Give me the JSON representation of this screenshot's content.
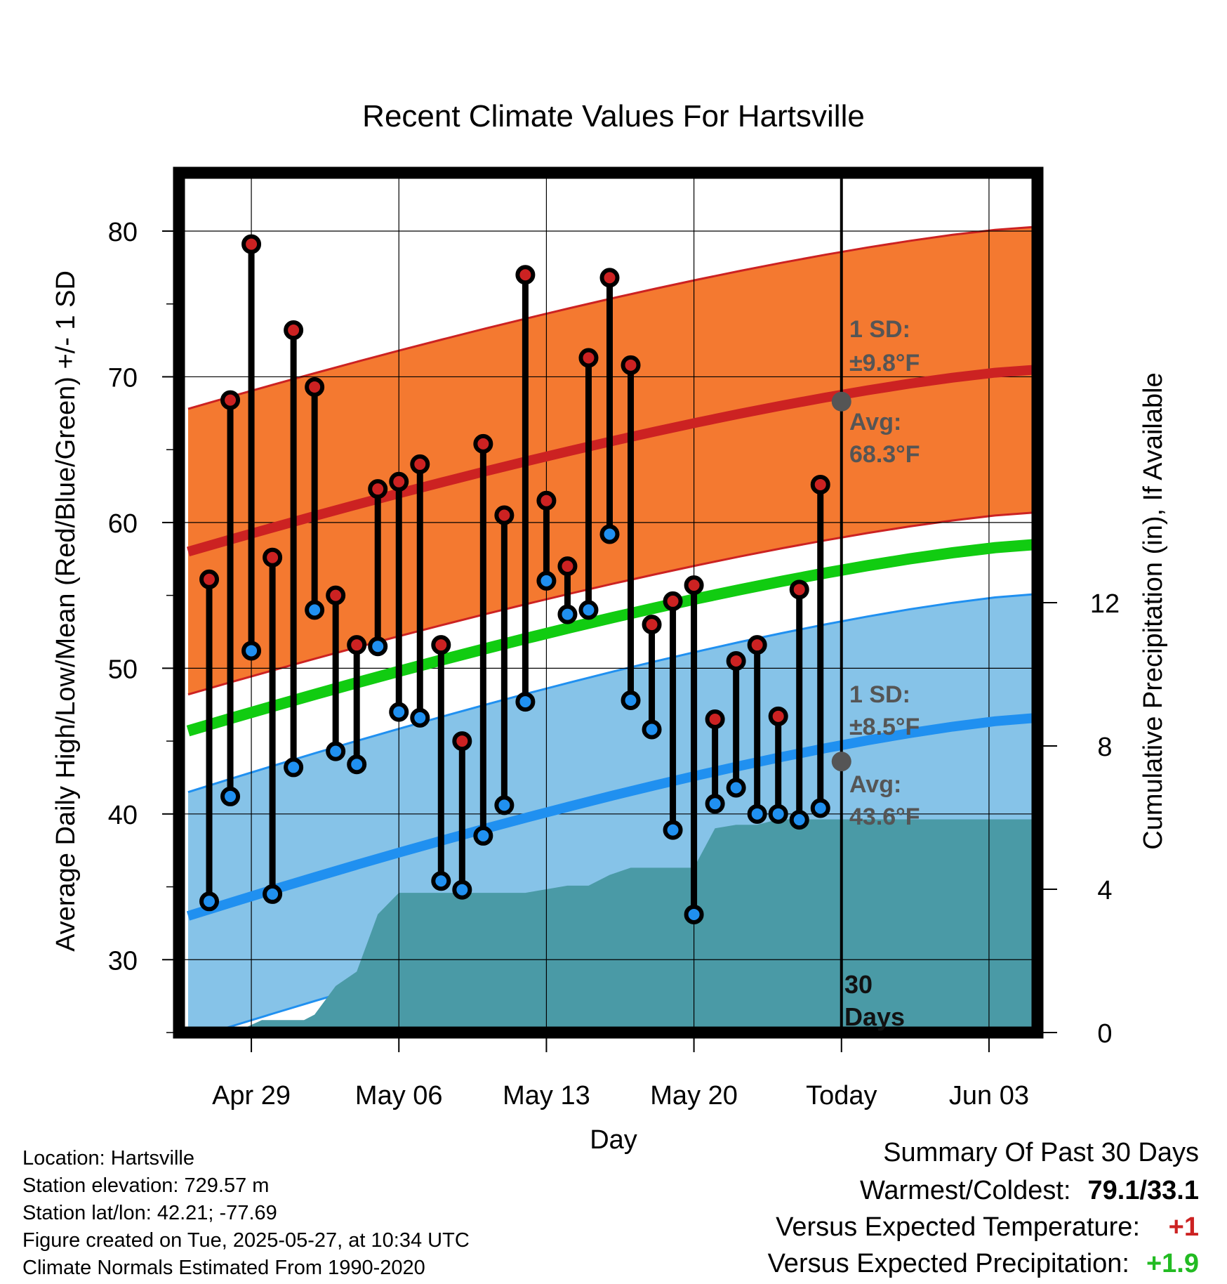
{
  "chart_data": {
    "type": "line",
    "title": "Recent Climate Values For Hartsville",
    "xlabel": "Day",
    "ylabel": "Average Daily High/Low/Mean (Red/Blue/Green) +/- 1 SD",
    "y2label": "Cumulative Precipitation (in), If Available",
    "ylim": [
      25,
      84
    ],
    "y2lim": [
      0,
      24
    ],
    "y_ticks": [
      "30",
      "40",
      "50",
      "60",
      "70",
      "80"
    ],
    "y2_ticks": [
      "0",
      "4",
      "8",
      "12"
    ],
    "x_ticks": [
      {
        "day": 3,
        "label": "Apr 29"
      },
      {
        "day": 10,
        "label": "May 06"
      },
      {
        "day": 17,
        "label": "May 13"
      },
      {
        "day": 24,
        "label": "May 20"
      },
      {
        "day": 31,
        "label": "Today"
      },
      {
        "day": 38,
        "label": "Jun 03"
      }
    ],
    "xlim": [
      0,
      40.3
    ],
    "days": [
      1,
      2,
      3,
      4,
      5,
      6,
      7,
      8,
      9,
      10,
      11,
      12,
      13,
      14,
      15,
      16,
      17,
      18,
      19,
      20,
      21,
      22,
      23,
      24,
      25,
      26,
      27,
      28,
      29,
      30
    ],
    "highs": [
      56.1,
      68.4,
      79.1,
      57.6,
      73.2,
      69.3,
      55.0,
      51.6,
      62.3,
      62.8,
      64.0,
      51.6,
      45.0,
      65.4,
      60.5,
      77.0,
      61.5,
      57.0,
      71.3,
      76.8,
      70.8,
      53.0,
      54.6,
      55.7,
      46.5,
      50.5,
      51.6,
      46.7,
      55.4,
      62.6
    ],
    "lows": [
      34.0,
      41.2,
      51.2,
      34.5,
      43.2,
      54.0,
      44.3,
      43.4,
      51.5,
      47.0,
      46.6,
      35.4,
      34.8,
      38.5,
      40.6,
      47.7,
      56.0,
      53.7,
      54.0,
      59.2,
      47.8,
      45.8,
      38.9,
      33.1,
      40.7,
      41.8,
      40.0,
      40.0,
      39.6,
      40.4
    ],
    "normal_high": {
      "x": [
        0,
        40.3
      ],
      "start": 58.0,
      "end": 70.5
    },
    "normal_high_sd": 9.8,
    "normal_low": {
      "x": [
        0,
        40.3
      ],
      "start": 33.0,
      "end": 46.6
    },
    "normal_low_sd": 8.5,
    "normal_mean": {
      "x": [
        0,
        40.3
      ],
      "start": 45.7,
      "end": 58.5
    },
    "precip_cum": {
      "x": [
        2.2,
        3.5,
        5.5,
        6.0,
        7.0,
        8.0,
        9.0,
        10.0,
        11.0,
        12.0,
        13.0,
        14.0,
        15.0,
        16.0,
        17.0,
        18.0,
        19.0,
        20.0,
        21.0,
        22.0,
        23.0,
        24.0,
        25.0,
        26.0,
        27.0,
        28.0,
        40.3
      ],
      "y": [
        0,
        0.35,
        0.35,
        0.5,
        1.3,
        1.7,
        3.3,
        3.9,
        3.9,
        3.9,
        3.9,
        3.9,
        3.9,
        3.9,
        4.0,
        4.1,
        4.1,
        4.4,
        4.6,
        4.6,
        4.6,
        4.6,
        5.7,
        5.8,
        5.8,
        5.95,
        5.95
      ]
    },
    "today_day": 31,
    "annotations": {
      "high_sd_label": "1 SD:",
      "high_sd_value": "±9.8°F",
      "high_avg_label": "Avg:",
      "high_avg_value": "68.3°F",
      "high_avg_y": 68.3,
      "low_sd_label": "1 SD:",
      "low_sd_value": "±8.5°F",
      "low_avg_label": "Avg:",
      "low_avg_value": "43.6°F",
      "low_avg_y": 43.6,
      "days_num": "30",
      "days_word": "Days"
    },
    "colors": {
      "high_band": "#f47930",
      "high_line": "#cc2222",
      "low_band": "#86c3e8",
      "low_line": "#2090f0",
      "mean_line": "#11cc11",
      "precip": "#4a9aa6",
      "high_dot": "#cc2222",
      "low_dot": "#2090f0",
      "avg_marker": "#555555"
    }
  },
  "footer": {
    "location": "Location: Hartsville",
    "elevation": "Station elevation: 729.57 m",
    "latlon": "Station lat/lon: 42.21; -77.69",
    "created": "Figure created on Tue, 2025-05-27, at 10:34 UTC",
    "normals": "Climate Normals Estimated From 1990-2020"
  },
  "summary": {
    "heading": "Summary Of Past 30 Days",
    "warmest_label": "Warmest/Coldest:",
    "warmest_value": "79.1/33.1",
    "temp_label": "Versus Expected Temperature:",
    "temp_value": "+1",
    "precip_label": "Versus Expected Precipitation:",
    "precip_value": "+1.9"
  }
}
